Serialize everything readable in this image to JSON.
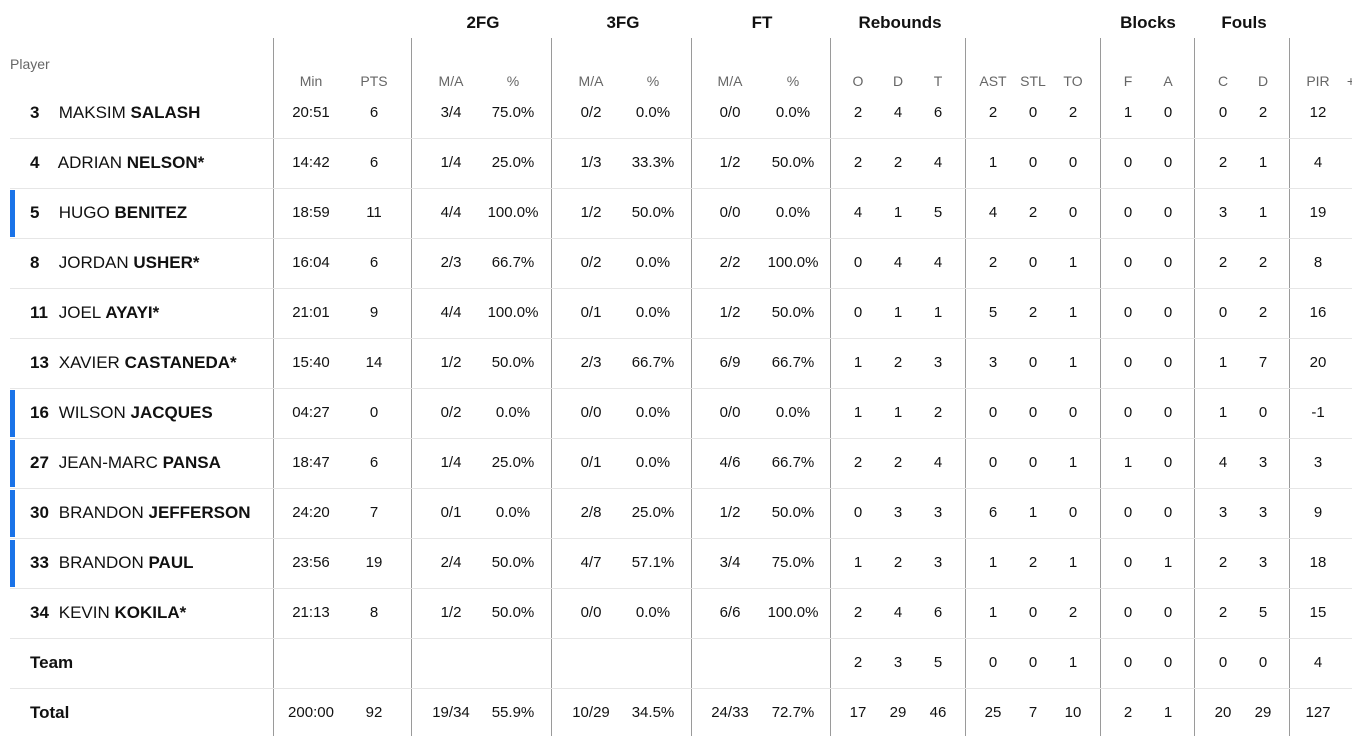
{
  "groups": {
    "fg2": "2FG",
    "fg3": "3FG",
    "ft": "FT",
    "reb": "Rebounds",
    "blk": "Blocks",
    "fouls": "Fouls"
  },
  "headers": {
    "player": "Player",
    "min": "Min",
    "pts": "PTS",
    "fg2_ma": "M/A",
    "fg2_pct": "%",
    "fg3_ma": "M/A",
    "fg3_pct": "%",
    "ft_ma": "M/A",
    "ft_pct": "%",
    "reb_o": "O",
    "reb_d": "D",
    "reb_t": "T",
    "ast": "AST",
    "stl": "STL",
    "to": "TO",
    "blk_f": "F",
    "blk_a": "A",
    "foul_c": "C",
    "foul_d": "D",
    "pir": "PIR",
    "more": "+"
  },
  "accent_color": "#1a73e8",
  "players": [
    {
      "num": "3",
      "first": "MAKSIM",
      "last": "SALASH",
      "starred": false,
      "bar": false,
      "stats": [
        "20:51",
        "6",
        "3/4",
        "75.0%",
        "0/2",
        "0.0%",
        "0/0",
        "0.0%",
        "2",
        "4",
        "6",
        "2",
        "0",
        "2",
        "1",
        "0",
        "0",
        "2",
        "12"
      ]
    },
    {
      "num": "4",
      "first": "ADRIAN",
      "last": "NELSON*",
      "starred": true,
      "bar": false,
      "stats": [
        "14:42",
        "6",
        "1/4",
        "25.0%",
        "1/3",
        "33.3%",
        "1/2",
        "50.0%",
        "2",
        "2",
        "4",
        "1",
        "0",
        "0",
        "0",
        "0",
        "2",
        "1",
        "4"
      ]
    },
    {
      "num": "5",
      "first": "HUGO",
      "last": "BENITEZ",
      "starred": false,
      "bar": true,
      "stats": [
        "18:59",
        "11",
        "4/4",
        "100.0%",
        "1/2",
        "50.0%",
        "0/0",
        "0.0%",
        "4",
        "1",
        "5",
        "4",
        "2",
        "0",
        "0",
        "0",
        "3",
        "1",
        "19"
      ]
    },
    {
      "num": "8",
      "first": "JORDAN",
      "last": "USHER*",
      "starred": true,
      "bar": false,
      "stats": [
        "16:04",
        "6",
        "2/3",
        "66.7%",
        "0/2",
        "0.0%",
        "2/2",
        "100.0%",
        "0",
        "4",
        "4",
        "2",
        "0",
        "1",
        "0",
        "0",
        "2",
        "2",
        "8"
      ]
    },
    {
      "num": "11",
      "first": "JOEL",
      "last": "AYAYI*",
      "starred": true,
      "bar": false,
      "stats": [
        "21:01",
        "9",
        "4/4",
        "100.0%",
        "0/1",
        "0.0%",
        "1/2",
        "50.0%",
        "0",
        "1",
        "1",
        "5",
        "2",
        "1",
        "0",
        "0",
        "0",
        "2",
        "16"
      ]
    },
    {
      "num": "13",
      "first": "XAVIER",
      "last": "CASTANEDA*",
      "starred": true,
      "bar": false,
      "stats": [
        "15:40",
        "14",
        "1/2",
        "50.0%",
        "2/3",
        "66.7%",
        "6/9",
        "66.7%",
        "1",
        "2",
        "3",
        "3",
        "0",
        "1",
        "0",
        "0",
        "1",
        "7",
        "20"
      ]
    },
    {
      "num": "16",
      "first": "WILSON",
      "last": "JACQUES",
      "starred": false,
      "bar": true,
      "stats": [
        "04:27",
        "0",
        "0/2",
        "0.0%",
        "0/0",
        "0.0%",
        "0/0",
        "0.0%",
        "1",
        "1",
        "2",
        "0",
        "0",
        "0",
        "0",
        "0",
        "1",
        "0",
        "-1"
      ]
    },
    {
      "num": "27",
      "first": "JEAN-MARC",
      "last": "PANSA",
      "starred": false,
      "bar": true,
      "stats": [
        "18:47",
        "6",
        "1/4",
        "25.0%",
        "0/1",
        "0.0%",
        "4/6",
        "66.7%",
        "2",
        "2",
        "4",
        "0",
        "0",
        "1",
        "1",
        "0",
        "4",
        "3",
        "3"
      ]
    },
    {
      "num": "30",
      "first": "BRANDON",
      "last": "JEFFERSON",
      "starred": false,
      "bar": true,
      "stats": [
        "24:20",
        "7",
        "0/1",
        "0.0%",
        "2/8",
        "25.0%",
        "1/2",
        "50.0%",
        "0",
        "3",
        "3",
        "6",
        "1",
        "0",
        "0",
        "0",
        "3",
        "3",
        "9"
      ]
    },
    {
      "num": "33",
      "first": "BRANDON",
      "last": "PAUL",
      "starred": false,
      "bar": true,
      "stats": [
        "23:56",
        "19",
        "2/4",
        "50.0%",
        "4/7",
        "57.1%",
        "3/4",
        "75.0%",
        "1",
        "2",
        "3",
        "1",
        "2",
        "1",
        "0",
        "1",
        "2",
        "3",
        "18"
      ]
    },
    {
      "num": "34",
      "first": "KEVIN",
      "last": "KOKILA*",
      "starred": true,
      "bar": false,
      "stats": [
        "21:13",
        "8",
        "1/2",
        "50.0%",
        "0/0",
        "0.0%",
        "6/6",
        "100.0%",
        "2",
        "4",
        "6",
        "1",
        "0",
        "2",
        "0",
        "0",
        "2",
        "5",
        "15"
      ]
    }
  ],
  "team": {
    "label": "Team",
    "stats": [
      "",
      "",
      "",
      "",
      "",
      "",
      "",
      "",
      "2",
      "3",
      "5",
      "0",
      "0",
      "1",
      "0",
      "0",
      "0",
      "0",
      "4"
    ]
  },
  "total": {
    "label": "Total",
    "stats": [
      "200:00",
      "92",
      "19/34",
      "55.9%",
      "10/29",
      "34.5%",
      "24/33",
      "72.7%",
      "17",
      "29",
      "46",
      "25",
      "7",
      "10",
      "2",
      "1",
      "20",
      "29",
      "127"
    ]
  }
}
